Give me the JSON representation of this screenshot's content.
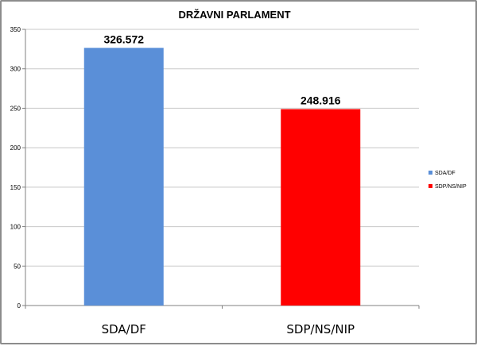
{
  "chart_data": {
    "type": "bar",
    "title": "DRŽAVNI PARLAMENT",
    "categories": [
      "SDA/DF",
      "SDP/NS/NIP"
    ],
    "values": [
      326.572,
      248.916
    ],
    "data_labels": [
      "326.572",
      "248.916"
    ],
    "colors": [
      "#5a8fd8",
      "#ff0000"
    ],
    "ylim": [
      0,
      350
    ],
    "yticks": [
      0,
      50,
      100,
      150,
      200,
      250,
      300,
      350
    ],
    "grid": true,
    "legend": {
      "placement": "right",
      "entries": [
        "SDA/DF",
        "SDP/NS/NIP"
      ]
    },
    "xlabel": "",
    "ylabel": ""
  }
}
